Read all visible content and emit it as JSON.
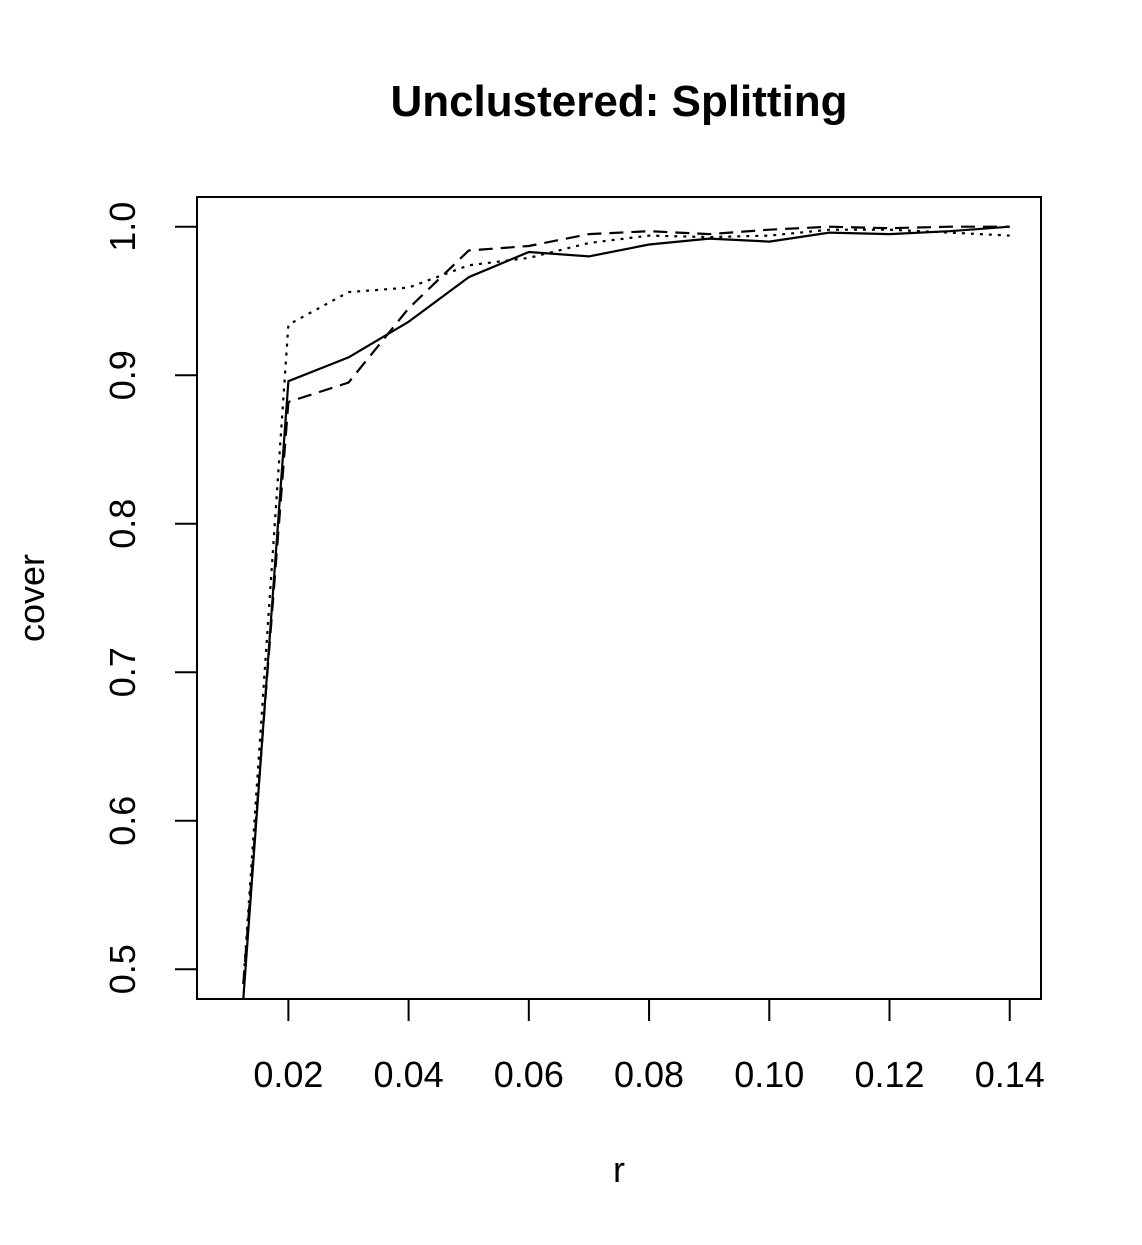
{
  "chart_data": {
    "type": "line",
    "title": "Unclustered: Splitting",
    "xlabel": "r",
    "ylabel": "cover",
    "xlim": [
      0.0048,
      0.1452
    ],
    "ylim": [
      0.48,
      1.02
    ],
    "x_ticks": [
      0.02,
      0.04,
      0.06,
      0.08,
      0.1,
      0.12,
      0.14
    ],
    "x_tick_labels": [
      "0.02",
      "0.04",
      "0.06",
      "0.08",
      "0.10",
      "0.12",
      "0.14"
    ],
    "y_ticks": [
      0.5,
      0.6,
      0.7,
      0.8,
      0.9,
      1.0
    ],
    "y_tick_labels": [
      "0.5",
      "0.6",
      "0.7",
      "0.8",
      "0.9",
      "1.0"
    ],
    "grid": false,
    "legend": "none",
    "line_color": "#000000",
    "series": [
      {
        "line_style": "solid",
        "x": [
          0.0125,
          0.02,
          0.03,
          0.04,
          0.05,
          0.06,
          0.07,
          0.08,
          0.09,
          0.1,
          0.11,
          0.12,
          0.13,
          0.14
        ],
        "y": [
          0.48,
          0.896,
          0.912,
          0.936,
          0.966,
          0.983,
          0.98,
          0.988,
          0.992,
          0.99,
          0.996,
          0.995,
          0.997,
          1.0
        ]
      },
      {
        "line_style": "dashed",
        "x": [
          0.0125,
          0.02,
          0.03,
          0.04,
          0.05,
          0.06,
          0.07,
          0.08,
          0.09,
          0.1,
          0.11,
          0.12,
          0.13,
          0.14
        ],
        "y": [
          0.49,
          0.882,
          0.895,
          0.945,
          0.984,
          0.987,
          0.995,
          0.997,
          0.995,
          0.998,
          1.0,
          0.999,
          1.0,
          1.0
        ]
      },
      {
        "line_style": "dotted",
        "x": [
          0.0125,
          0.02,
          0.03,
          0.04,
          0.05,
          0.06,
          0.07,
          0.08,
          0.09,
          0.1,
          0.11,
          0.12,
          0.13,
          0.14
        ],
        "y": [
          0.49,
          0.934,
          0.956,
          0.959,
          0.974,
          0.979,
          0.989,
          0.994,
          0.993,
          0.994,
          0.998,
          0.998,
          0.996,
          0.994
        ]
      }
    ]
  }
}
